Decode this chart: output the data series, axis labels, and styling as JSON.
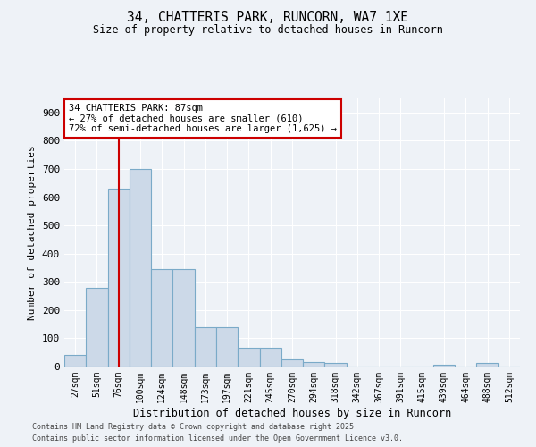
{
  "title_line1": "34, CHATTERIS PARK, RUNCORN, WA7 1XE",
  "title_line2": "Size of property relative to detached houses in Runcorn",
  "xlabel": "Distribution of detached houses by size in Runcorn",
  "ylabel": "Number of detached properties",
  "categories": [
    "27sqm",
    "51sqm",
    "76sqm",
    "100sqm",
    "124sqm",
    "148sqm",
    "173sqm",
    "197sqm",
    "221sqm",
    "245sqm",
    "270sqm",
    "294sqm",
    "318sqm",
    "342sqm",
    "367sqm",
    "391sqm",
    "415sqm",
    "439sqm",
    "464sqm",
    "488sqm",
    "512sqm"
  ],
  "values": [
    42,
    280,
    630,
    700,
    345,
    345,
    140,
    140,
    65,
    65,
    25,
    15,
    12,
    0,
    0,
    0,
    0,
    5,
    0,
    12,
    0
  ],
  "bar_color": "#ccd9e8",
  "bar_edge_color": "#7aaac8",
  "red_line_x": 2.0,
  "annotation_text": "34 CHATTERIS PARK: 87sqm\n← 27% of detached houses are smaller (610)\n72% of semi-detached houses are larger (1,625) →",
  "annotation_box_facecolor": "#ffffff",
  "annotation_box_edge": "#cc0000",
  "red_line_color": "#cc0000",
  "ylim": [
    0,
    950
  ],
  "yticks": [
    0,
    100,
    200,
    300,
    400,
    500,
    600,
    700,
    800,
    900
  ],
  "footer_line1": "Contains HM Land Registry data © Crown copyright and database right 2025.",
  "footer_line2": "Contains public sector information licensed under the Open Government Licence v3.0.",
  "bg_color": "#eef2f7",
  "plot_bg_color": "#eef2f7",
  "grid_color": "#ffffff"
}
